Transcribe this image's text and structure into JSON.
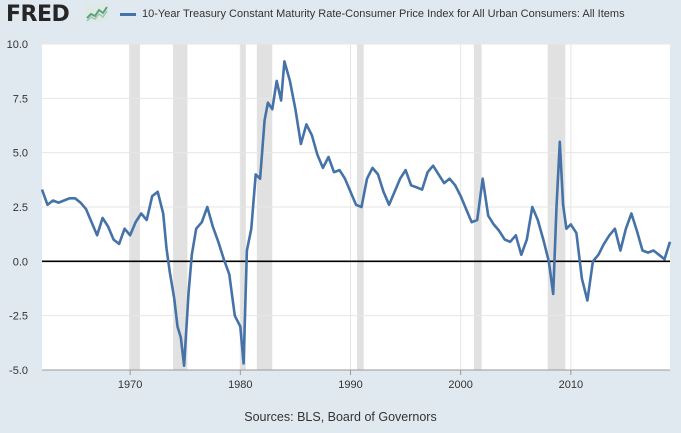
{
  "brand": {
    "logo_text": "FRED",
    "logo_icon": "fred-chart-icon",
    "source_text": "Sources: BLS, Board of Governors"
  },
  "colors": {
    "background": "#e1e9f0",
    "plot_bg": "#ffffff",
    "series": "#4572a7",
    "recession": "#e1e1e1",
    "grid": "#e6e6e6",
    "zero_line": "#000000"
  },
  "chart_data": {
    "type": "line",
    "title": "",
    "xlabel": "",
    "ylabel": "",
    "xlim": [
      1962.0,
      2019.0
    ],
    "ylim": [
      -5.0,
      10.0
    ],
    "yticks": [
      "-5.0",
      "-2.5",
      "0.0",
      "2.5",
      "5.0",
      "7.5",
      "10.0"
    ],
    "xticks": [
      "1970",
      "1980",
      "1990",
      "2000",
      "2010"
    ],
    "grid": true,
    "zero_line": true,
    "legend_position": "top",
    "recessions": [
      [
        1969.9,
        1970.9
      ],
      [
        1973.9,
        1975.2
      ],
      [
        1980.0,
        1980.5
      ],
      [
        1981.5,
        1982.9
      ],
      [
        1990.6,
        1991.2
      ],
      [
        2001.2,
        2001.9
      ],
      [
        2007.9,
        2009.5
      ]
    ],
    "series": [
      {
        "name": "10-Year Treasury Constant Maturity Rate-Consumer Price Index for All Urban Consumers: All Items",
        "x": [
          1962.0,
          1962.5,
          1963.0,
          1963.5,
          1964.0,
          1964.5,
          1965.0,
          1965.5,
          1966.0,
          1966.5,
          1967.0,
          1967.5,
          1968.0,
          1968.5,
          1969.0,
          1969.5,
          1970.0,
          1970.5,
          1971.0,
          1971.5,
          1972.0,
          1972.5,
          1973.0,
          1973.3,
          1973.6,
          1974.0,
          1974.3,
          1974.6,
          1974.9,
          1975.3,
          1975.6,
          1976.0,
          1976.5,
          1977.0,
          1977.5,
          1978.0,
          1978.5,
          1979.0,
          1979.5,
          1980.0,
          1980.3,
          1980.6,
          1981.0,
          1981.4,
          1981.8,
          1982.2,
          1982.5,
          1982.9,
          1983.3,
          1983.7,
          1984.0,
          1984.5,
          1985.0,
          1985.5,
          1986.0,
          1986.5,
          1987.0,
          1987.5,
          1988.0,
          1988.5,
          1989.0,
          1989.5,
          1990.0,
          1990.5,
          1991.0,
          1991.5,
          1992.0,
          1992.5,
          1993.0,
          1993.5,
          1994.0,
          1994.5,
          1995.0,
          1995.5,
          1996.0,
          1996.5,
          1997.0,
          1997.5,
          1998.0,
          1998.5,
          1999.0,
          1999.5,
          2000.0,
          2000.5,
          2001.0,
          2001.5,
          2002.0,
          2002.5,
          2003.0,
          2003.5,
          2004.0,
          2004.5,
          2005.0,
          2005.5,
          2006.0,
          2006.5,
          2007.0,
          2007.5,
          2008.0,
          2008.4,
          2008.7,
          2009.0,
          2009.3,
          2009.6,
          2010.0,
          2010.5,
          2011.0,
          2011.5,
          2012.0,
          2012.5,
          2013.0,
          2013.5,
          2014.0,
          2014.5,
          2015.0,
          2015.5,
          2016.0,
          2016.5,
          2017.0,
          2017.5,
          2018.0,
          2018.5,
          2019.0
        ],
        "y": [
          3.3,
          2.6,
          2.8,
          2.7,
          2.8,
          2.9,
          2.9,
          2.7,
          2.4,
          1.8,
          1.2,
          2.0,
          1.6,
          1.0,
          0.8,
          1.5,
          1.2,
          1.8,
          2.2,
          1.9,
          3.0,
          3.2,
          2.2,
          0.6,
          -0.5,
          -1.7,
          -3.0,
          -3.5,
          -4.8,
          -1.5,
          0.3,
          1.5,
          1.8,
          2.5,
          1.6,
          0.9,
          0.1,
          -0.6,
          -2.5,
          -3.0,
          -4.7,
          0.5,
          1.5,
          4.0,
          3.8,
          6.5,
          7.3,
          7.0,
          8.3,
          7.4,
          9.2,
          8.3,
          7.0,
          5.4,
          6.3,
          5.8,
          4.9,
          4.3,
          4.8,
          4.1,
          4.2,
          3.8,
          3.2,
          2.6,
          2.5,
          3.8,
          4.3,
          4.0,
          3.2,
          2.6,
          3.2,
          3.8,
          4.2,
          3.5,
          3.4,
          3.3,
          4.1,
          4.4,
          4.0,
          3.6,
          3.8,
          3.5,
          3.0,
          2.4,
          1.8,
          1.9,
          3.8,
          2.1,
          1.7,
          1.4,
          1.0,
          0.9,
          1.2,
          0.3,
          1.0,
          2.5,
          1.9,
          1.0,
          0.0,
          -1.5,
          2.5,
          5.5,
          2.6,
          1.5,
          1.7,
          1.3,
          -0.8,
          -1.8,
          0.0,
          0.3,
          0.8,
          1.2,
          1.5,
          0.5,
          1.5,
          2.2,
          1.4,
          0.5,
          0.4,
          0.5,
          0.3,
          0.1,
          0.9
        ]
      }
    ]
  }
}
